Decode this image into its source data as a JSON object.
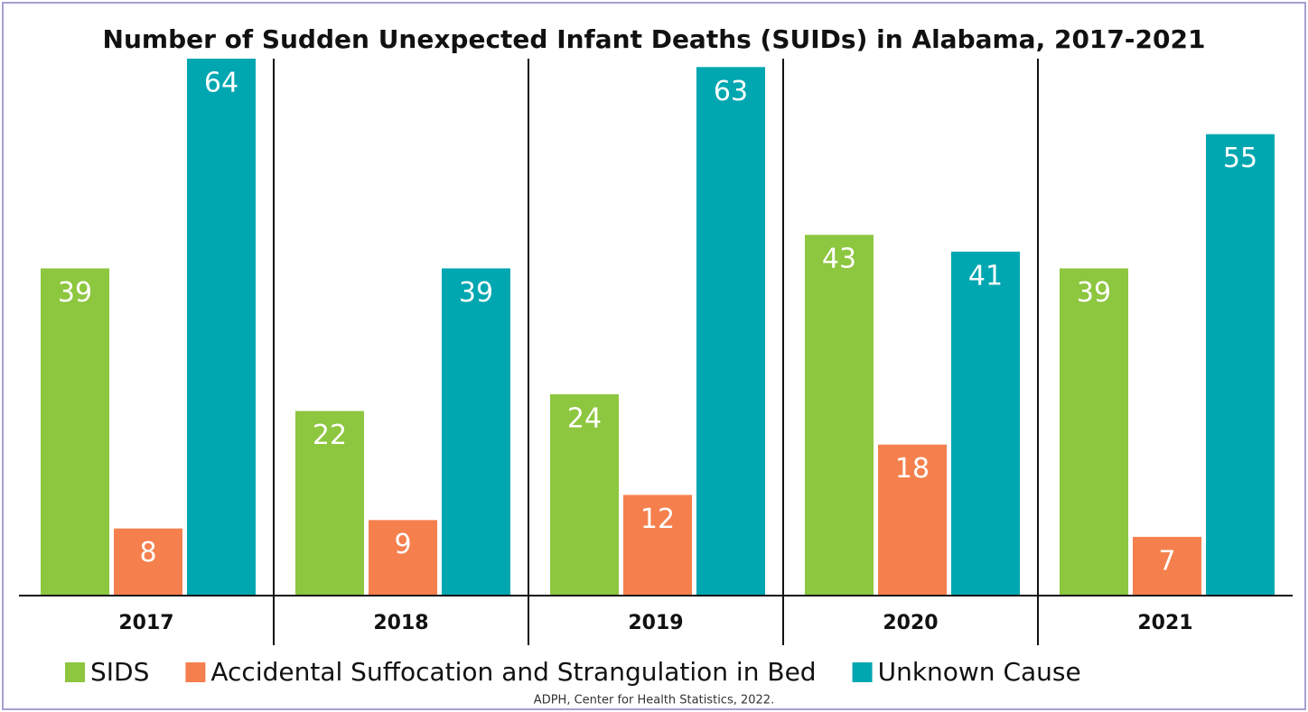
{
  "chart_data": {
    "type": "bar",
    "title": "Number of Sudden Unexpected Infant Deaths (SUIDs) in Alabama, 2017-2021",
    "categories": [
      "2017",
      "2018",
      "2019",
      "2020",
      "2021"
    ],
    "series": [
      {
        "name": "SIDS",
        "color": "#8dc63f",
        "values": [
          39,
          22,
          24,
          43,
          39
        ]
      },
      {
        "name": "Accidental Suffocation and Strangulation in Bed",
        "color": "#f5804d",
        "values": [
          8,
          9,
          12,
          18,
          7
        ]
      },
      {
        "name": "Unknown Cause",
        "color": "#00a7b0",
        "values": [
          64,
          39,
          63,
          41,
          55
        ]
      }
    ],
    "ylim": [
      0,
      64
    ],
    "source": "ADPH, Center for Health Statistics, 2022."
  }
}
